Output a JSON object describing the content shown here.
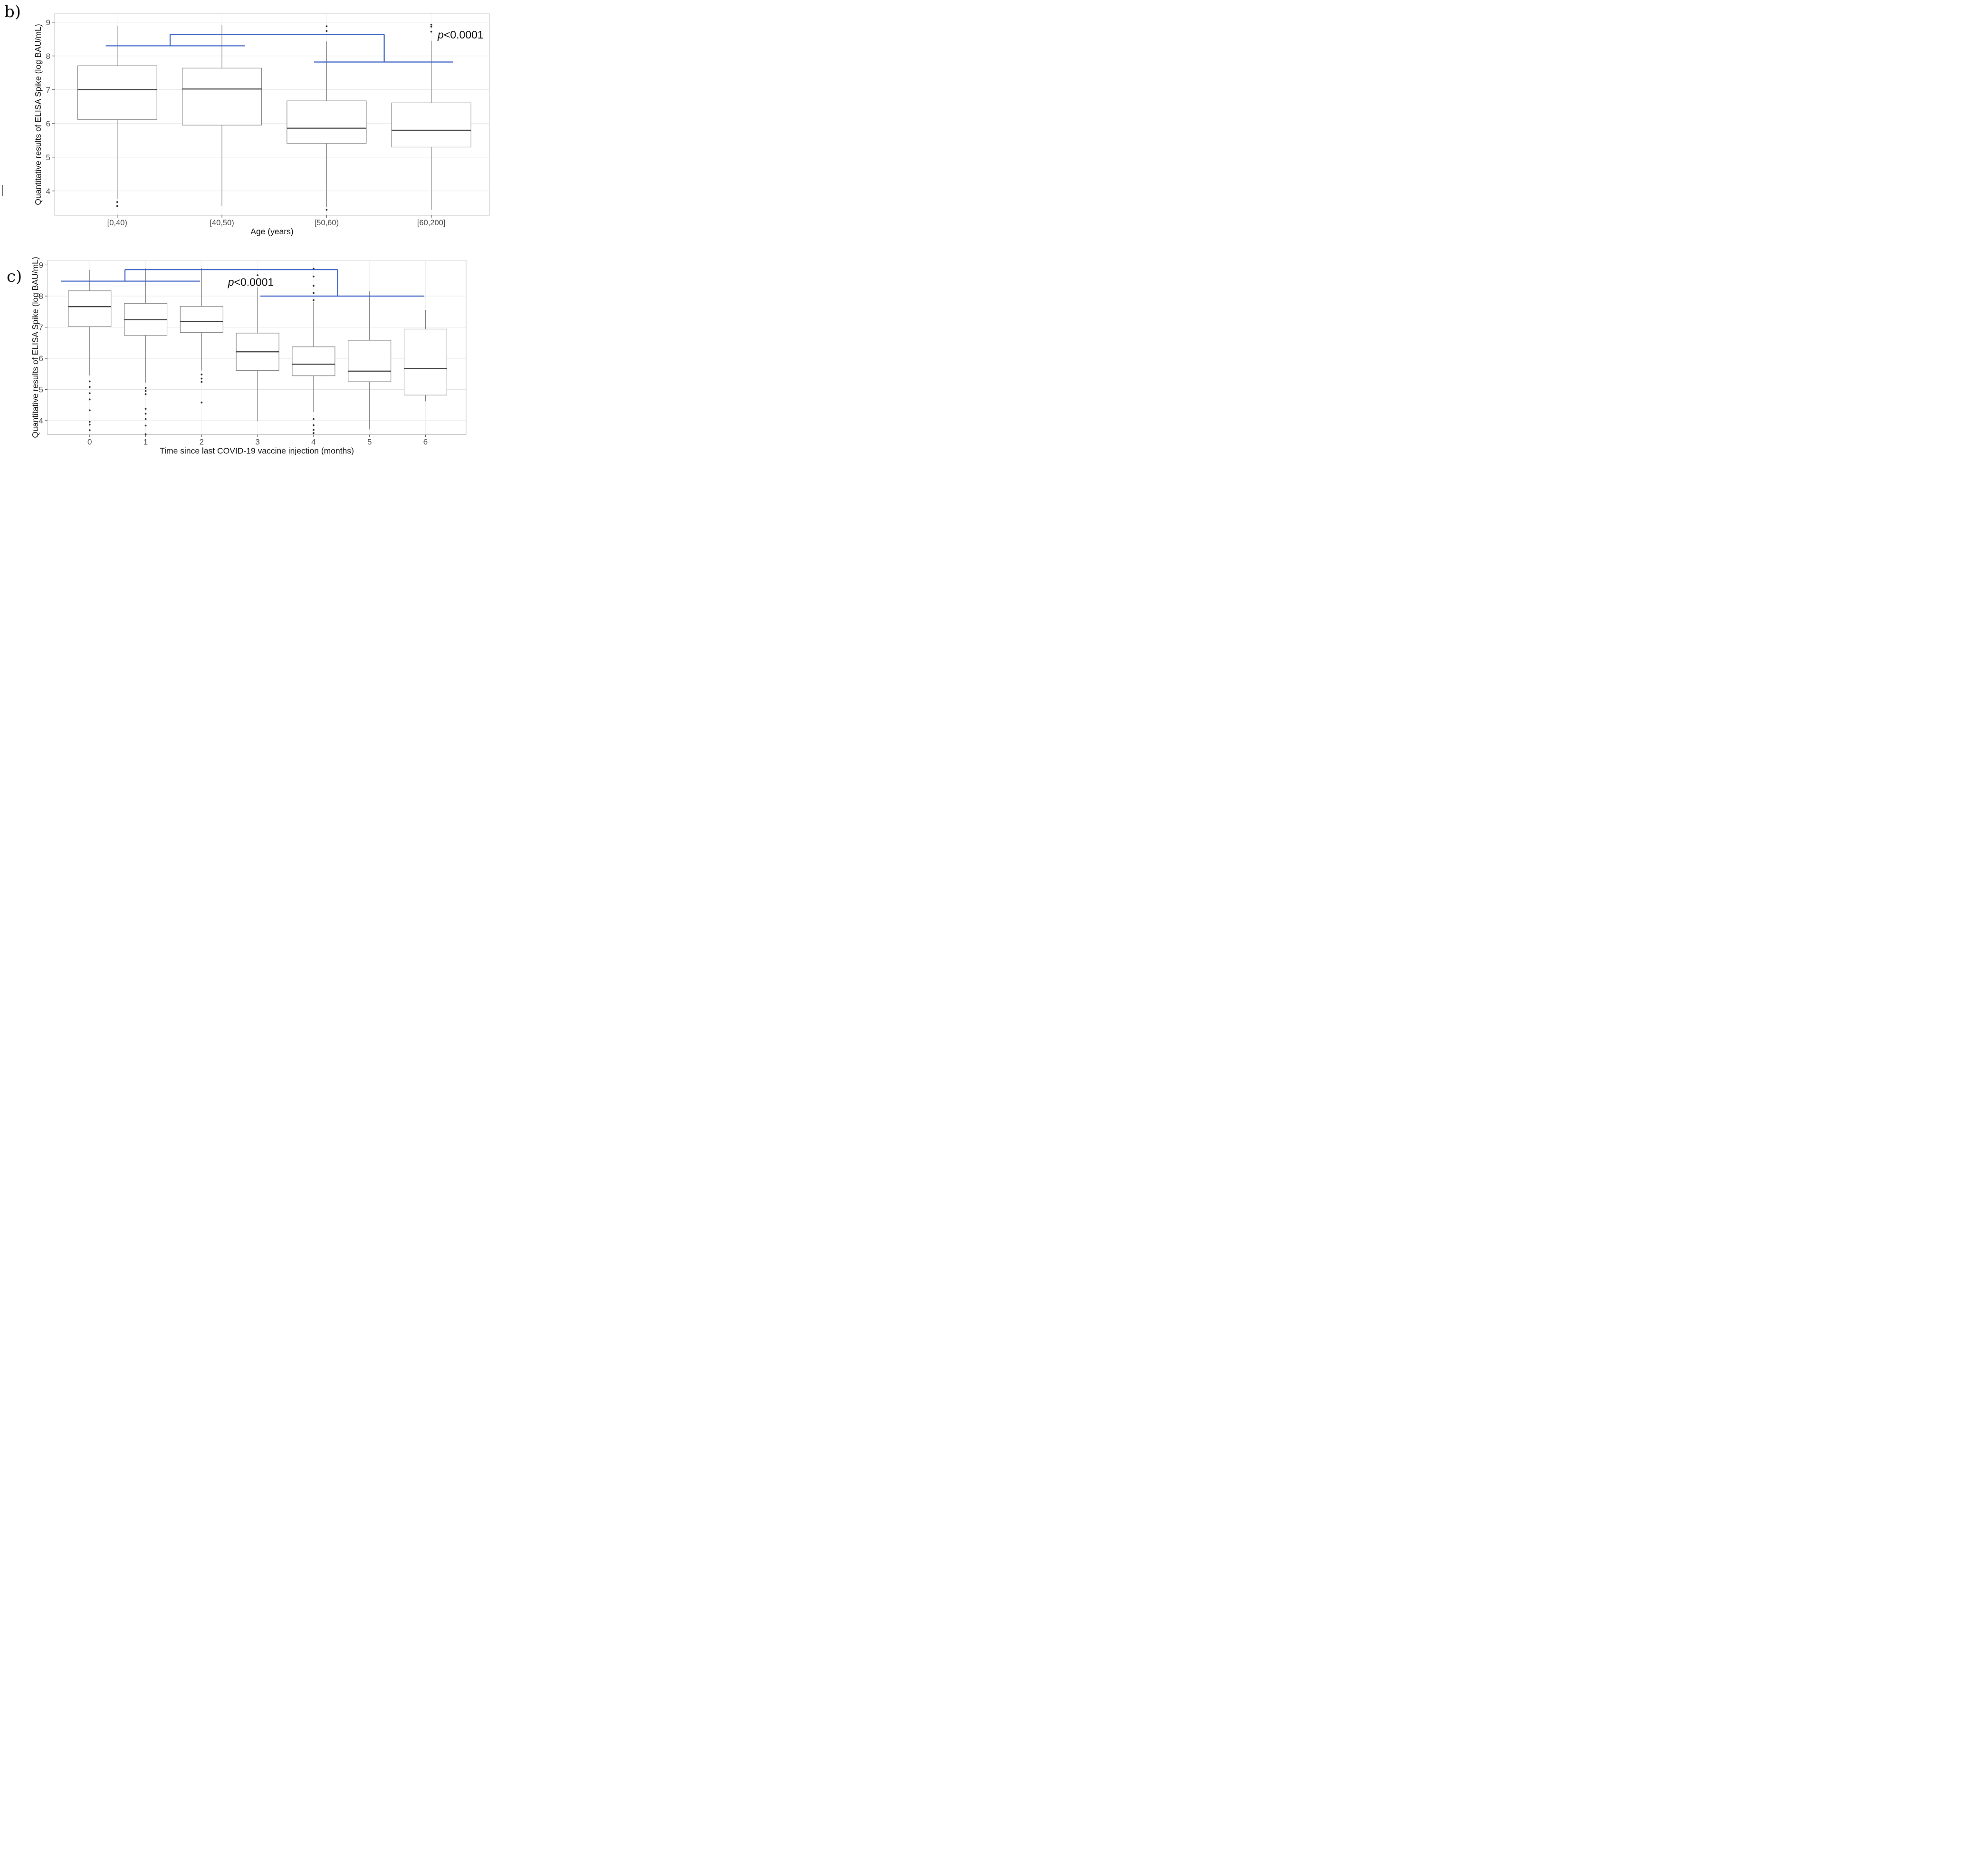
{
  "figure": {
    "panels": [
      {
        "label": "b)"
      },
      {
        "label": "c)"
      }
    ]
  },
  "chart_data": [
    {
      "id": "b",
      "type": "box",
      "panel_label": "b)",
      "xlabel": "Age (years)",
      "ylabel": "Quantitative results of ELISA Spike (log BAU/mL)",
      "yticks": [
        4,
        5,
        6,
        7,
        8,
        9
      ],
      "ylim": [
        3.3,
        9.25
      ],
      "grid": "major-horizontal, faint vertical at categories",
      "categories": [
        "[0,40)",
        "[40,50)",
        "[50,60)",
        "[60,200]"
      ],
      "boxes": [
        {
          "category": "[0,40)",
          "whisker_low": 3.77,
          "q1": 6.12,
          "median": 7.0,
          "q3": 7.71,
          "whisker_high": 8.89,
          "outliers": [
            3.67,
            3.55
          ]
        },
        {
          "category": "[40,50)",
          "whisker_low": 3.55,
          "q1": 5.95,
          "median": 7.02,
          "q3": 7.64,
          "whisker_high": 8.92,
          "outliers": []
        },
        {
          "category": "[50,60)",
          "whisker_low": 3.53,
          "q1": 5.41,
          "median": 5.86,
          "q3": 6.67,
          "whisker_high": 8.43,
          "outliers": [
            8.88,
            8.74,
            3.44
          ]
        },
        {
          "category": "[60,200]",
          "whisker_low": 3.44,
          "q1": 5.3,
          "median": 5.8,
          "q3": 6.61,
          "whisker_high": 8.45,
          "outliers": [
            8.93,
            8.87,
            8.72
          ]
        }
      ],
      "significance": {
        "label": "p<0.0001",
        "label_pos": {
          "x": 3.28,
          "y": 8.6
        },
        "color": "#3b5fc4",
        "segments": [
          [
            [
              -0.11,
              8.3
            ],
            [
              1.22,
              8.3
            ]
          ],
          [
            [
              0.505,
              8.3
            ],
            [
              0.505,
              8.64
            ]
          ],
          [
            [
              0.505,
              8.64
            ],
            [
              2.55,
              8.64
            ]
          ],
          [
            [
              2.55,
              8.64
            ],
            [
              2.55,
              7.82
            ]
          ],
          [
            [
              1.88,
              7.82
            ],
            [
              3.21,
              7.82
            ]
          ]
        ]
      }
    },
    {
      "id": "c",
      "type": "box",
      "panel_label": "c)",
      "xlabel": "Time since last COVID-19 vaccine injection (months)",
      "ylabel": "Quantitative results of ELISA Spike (log BAU/mL)",
      "yticks": [
        4,
        5,
        6,
        7,
        8,
        9
      ],
      "ylim": [
        3.5,
        9.15
      ],
      "grid": "major-horizontal, faint vertical at categories",
      "categories": [
        "0",
        "1",
        "2",
        "3",
        "4",
        "5",
        "6"
      ],
      "boxes": [
        {
          "category": "0",
          "whisker_low": 5.45,
          "q1": 7.02,
          "median": 7.66,
          "q3": 8.17,
          "whisker_high": 8.84,
          "outliers": [
            5.26,
            5.08,
            4.88,
            4.68,
            4.33,
            3.96,
            3.87,
            3.69
          ]
        },
        {
          "category": "1",
          "whisker_low": 5.22,
          "q1": 6.74,
          "median": 7.24,
          "q3": 7.76,
          "whisker_high": 8.89,
          "outliers": [
            5.05,
            4.95,
            4.85,
            4.38,
            4.22,
            4.05,
            3.84,
            3.56
          ]
        },
        {
          "category": "2",
          "whisker_low": 5.61,
          "q1": 6.83,
          "median": 7.18,
          "q3": 7.67,
          "whisker_high": 8.9,
          "outliers": [
            5.48,
            5.35,
            5.24,
            4.58
          ]
        },
        {
          "category": "3",
          "whisker_low": 3.98,
          "q1": 5.61,
          "median": 6.21,
          "q3": 6.81,
          "whisker_high": 8.28,
          "outliers": [
            8.67
          ]
        },
        {
          "category": "4",
          "whisker_low": 4.28,
          "q1": 5.44,
          "median": 5.81,
          "q3": 6.37,
          "whisker_high": 7.8,
          "outliers": [
            8.88,
            8.63,
            8.33,
            8.1,
            7.87,
            4.05,
            3.85,
            3.7,
            3.6
          ]
        },
        {
          "category": "5",
          "whisker_low": 3.72,
          "q1": 5.25,
          "median": 5.59,
          "q3": 6.58,
          "whisker_high": 8.15,
          "outliers": []
        },
        {
          "category": "6",
          "whisker_low": 4.62,
          "q1": 4.82,
          "median": 5.67,
          "q3": 6.94,
          "whisker_high": 7.55,
          "outliers": []
        }
      ],
      "significance": {
        "label": "p<0.0001",
        "label_pos": {
          "x": 2.88,
          "y": 8.42
        },
        "color": "#3b5fc4",
        "segments": [
          [
            [
              -0.51,
              8.48
            ],
            [
              1.97,
              8.48
            ]
          ],
          [
            [
              0.63,
              8.48
            ],
            [
              0.63,
              8.85
            ]
          ],
          [
            [
              0.63,
              8.85
            ],
            [
              4.43,
              8.85
            ]
          ],
          [
            [
              4.43,
              8.85
            ],
            [
              4.43,
              8.0
            ]
          ],
          [
            [
              3.05,
              8.0
            ],
            [
              5.98,
              8.0
            ]
          ]
        ]
      }
    }
  ]
}
